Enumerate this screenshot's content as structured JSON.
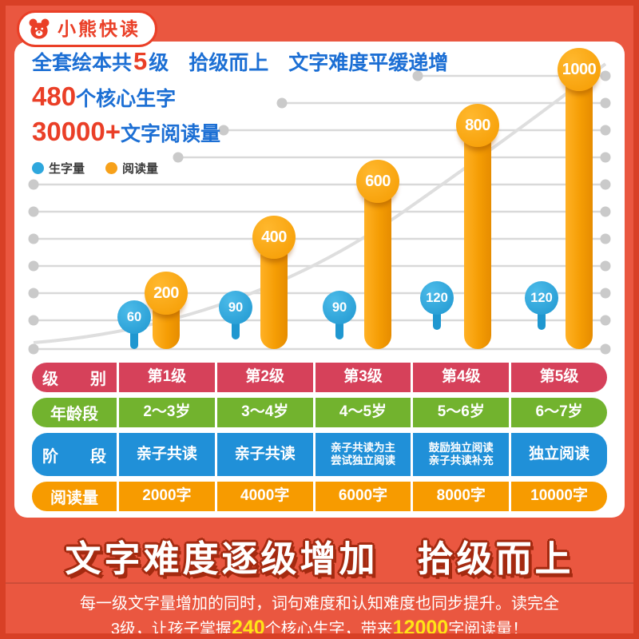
{
  "badge": {
    "label": "小熊快读"
  },
  "header": {
    "line1_prefix": "全套绘本共",
    "line1_num": "5",
    "line1_suffix": "级　拾级而上　文字难度平缓递增",
    "line2_num": "480",
    "line2_suffix": "个核心生字",
    "line3_num": "30000+",
    "line3_suffix": "文字阅读量"
  },
  "legend": [
    {
      "label": "生字量",
      "color": "#2ea7dd"
    },
    {
      "label": "阅读量",
      "color": "#f7a11a"
    }
  ],
  "chart_data": {
    "type": "bar",
    "title": "全套绘本共5级 拾级而上 文字难度平缓递增",
    "categories": [
      "第1级",
      "第2级",
      "第3级",
      "第4级",
      "第5级"
    ],
    "series": [
      {
        "name": "生字量",
        "values": [
          60,
          90,
          90,
          120,
          120
        ],
        "color": "#2ea7dd"
      },
      {
        "name": "阅读量",
        "values": [
          200,
          400,
          600,
          800,
          1000
        ],
        "color": "#f7a41c"
      }
    ],
    "ylim": [
      0,
      1000
    ],
    "grid": true,
    "legend_position": "top-left"
  },
  "table": {
    "rows": [
      {
        "label": "级　　别",
        "color": "#d6415a",
        "cells": [
          "第1级",
          "第2级",
          "第3级",
          "第4级",
          "第5级"
        ]
      },
      {
        "label": "年龄段",
        "color": "#72b32e",
        "cells": [
          "2～3岁",
          "3～4岁",
          "4～5岁",
          "5～6岁",
          "6～7岁"
        ]
      },
      {
        "label": "阶　　段",
        "color": "#2090d8",
        "cells": [
          "亲子共读",
          "亲子共读",
          "亲子共读为主\n尝试独立阅读",
          "鼓励独立阅读\n亲子共读补充",
          "独立阅读"
        ]
      },
      {
        "label": "阅读量",
        "color": "#f79b00",
        "cells": [
          "2000字",
          "4000字",
          "6000字",
          "8000字",
          "10000字"
        ]
      }
    ]
  },
  "footer": {
    "title": "文字难度逐级增加　拾级而上",
    "line1": "每一级文字量增加的同时，词句难度和认知难度也同步提升。读完全",
    "line2_parts": [
      "3级，让孩子掌握",
      "240",
      "个核心生字，带来",
      "12000",
      "字阅读量！"
    ]
  }
}
